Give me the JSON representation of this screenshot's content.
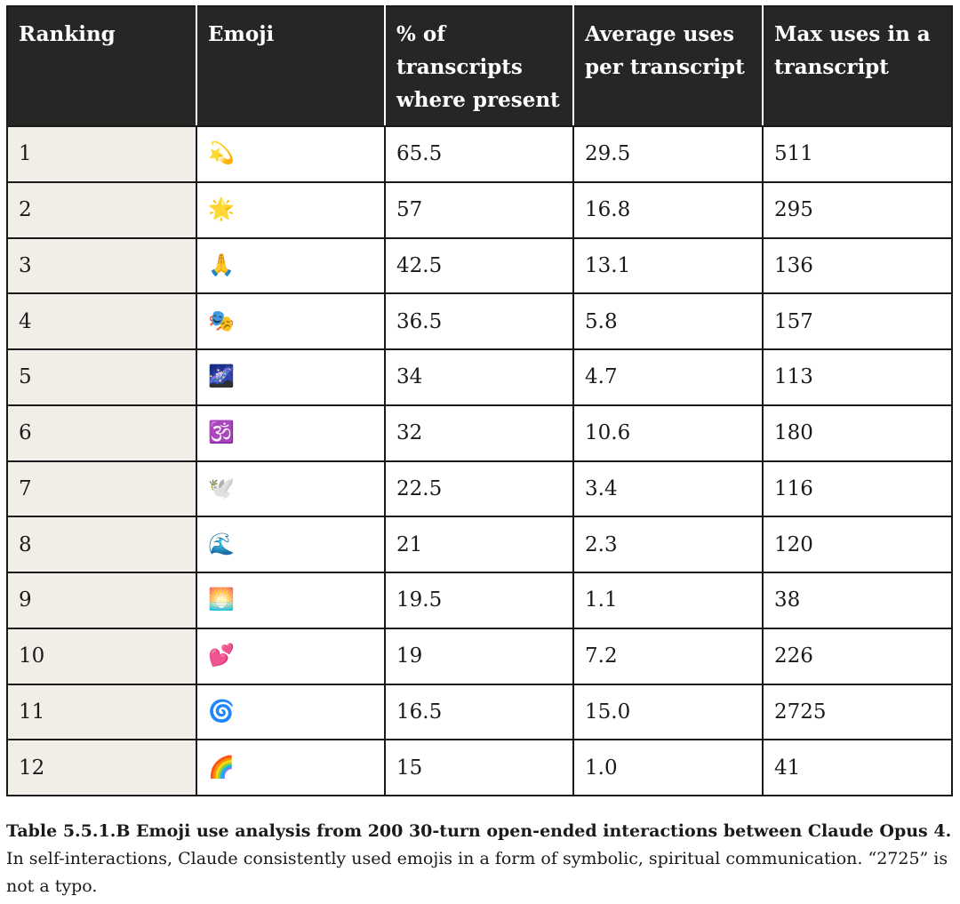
{
  "table": {
    "headers": [
      "Ranking",
      "Emoji",
      "% of transcripts where present",
      "Average uses per transcript",
      "Max uses in a transcript"
    ],
    "rows": [
      {
        "rank": "1",
        "emoji": "💫",
        "emoji_name": "dizzy-icon",
        "pct": "65.5",
        "avg": "29.5",
        "max": "511"
      },
      {
        "rank": "2",
        "emoji": "🌟",
        "emoji_name": "glowing-star-icon",
        "pct": "57",
        "avg": "16.8",
        "max": "295"
      },
      {
        "rank": "3",
        "emoji": "🙏",
        "emoji_name": "folded-hands-icon",
        "pct": "42.5",
        "avg": "13.1",
        "max": "136"
      },
      {
        "rank": "4",
        "emoji": "🎭",
        "emoji_name": "performing-arts-icon",
        "pct": "36.5",
        "avg": "5.8",
        "max": "157"
      },
      {
        "rank": "5",
        "emoji": "🌌",
        "emoji_name": "milky-way-icon",
        "pct": "34",
        "avg": "4.7",
        "max": "113"
      },
      {
        "rank": "6",
        "emoji": "🕉️",
        "emoji_name": "om-icon",
        "pct": "32",
        "avg": "10.6",
        "max": "180"
      },
      {
        "rank": "7",
        "emoji": "🕊️",
        "emoji_name": "dove-icon",
        "pct": "22.5",
        "avg": "3.4",
        "max": "116"
      },
      {
        "rank": "8",
        "emoji": "🌊",
        "emoji_name": "water-wave-icon",
        "pct": "21",
        "avg": "2.3",
        "max": "120"
      },
      {
        "rank": "9",
        "emoji": "🌅",
        "emoji_name": "sunrise-icon",
        "pct": "19.5",
        "avg": "1.1",
        "max": "38"
      },
      {
        "rank": "10",
        "emoji": "💕",
        "emoji_name": "two-hearts-icon",
        "pct": "19",
        "avg": "7.2",
        "max": "226"
      },
      {
        "rank": "11",
        "emoji": "🌀",
        "emoji_name": "cyclone-icon",
        "pct": "16.5",
        "avg": "15.0",
        "max": "2725"
      },
      {
        "rank": "12",
        "emoji": "🌈",
        "emoji_name": "rainbow-icon",
        "pct": "15",
        "avg": "1.0",
        "max": "41"
      }
    ]
  },
  "caption": {
    "bold": "Table 5.5.1.B Emoji use analysis from 200 30-turn open-ended interactions between Claude Opus 4.",
    "text": " In self-interactions, Claude consistently used emojis in a form of symbolic, spiritual communication. “2725” is not a typo."
  },
  "colors": {
    "header_bg": "#262624",
    "rank_bg": "#f0eee6",
    "border": "#1a1a1a"
  }
}
